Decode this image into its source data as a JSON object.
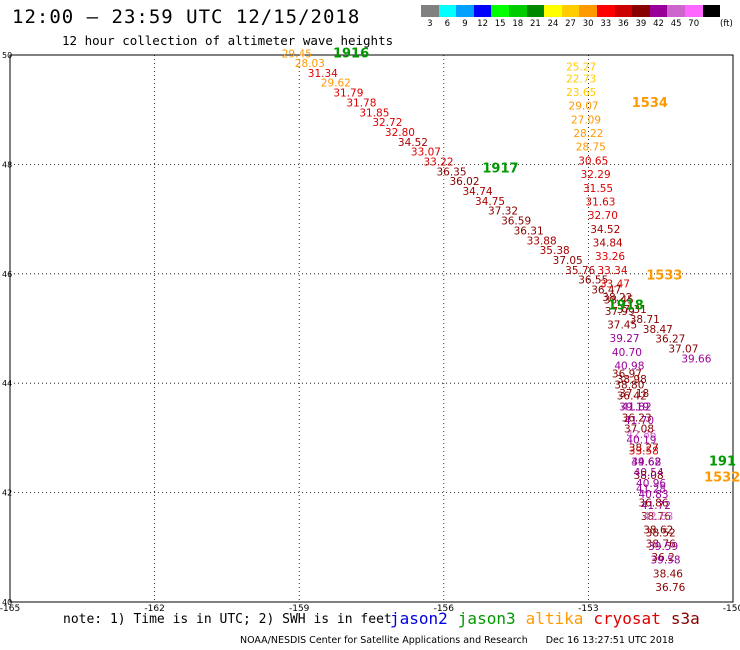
{
  "header": {
    "title": "12:00 – 23:59 UTC 12/15/2018",
    "subtitle": "12 hour collection of altimeter wave heights"
  },
  "color_scale": {
    "unit": "(ft)",
    "bins": [
      {
        "label": "3",
        "color": "#808080"
      },
      {
        "label": "6",
        "color": "#00ffff"
      },
      {
        "label": "9",
        "color": "#00a0ff"
      },
      {
        "label": "12",
        "color": "#0000ff"
      },
      {
        "label": "15",
        "color": "#00ff00"
      },
      {
        "label": "18",
        "color": "#00cc00"
      },
      {
        "label": "21",
        "color": "#008800"
      },
      {
        "label": "24",
        "color": "#ffff00"
      },
      {
        "label": "27",
        "color": "#ffcc00"
      },
      {
        "label": "30",
        "color": "#ff9900"
      },
      {
        "label": "33",
        "color": "#ff0000"
      },
      {
        "label": "36",
        "color": "#cc0000"
      },
      {
        "label": "39",
        "color": "#880000"
      },
      {
        "label": "42",
        "color": "#990099"
      },
      {
        "label": "45",
        "color": "#cc66cc"
      },
      {
        "label": "70",
        "color": "#ff66ff"
      },
      {
        "label": "",
        "color": "#000000"
      }
    ]
  },
  "notes": {
    "text": "note: 1) Time is in UTC; 2) SWH is in feet",
    "footer_org": "NOAA/NESDIS Center for Satellite Applications and Research",
    "footer_time": "Dec 16 13:27:51 UTC 2018"
  },
  "legend": [
    {
      "name": "jason2",
      "color": "#0000dd"
    },
    {
      "name": "jason3",
      "color": "#009900"
    },
    {
      "name": "altika",
      "color": "#ff9900"
    },
    {
      "name": "cryosat",
      "color": "#dd0000"
    },
    {
      "name": "s3a",
      "color": "#880000"
    }
  ],
  "chart_data": {
    "type": "scatter",
    "xlim": [
      -165,
      -150
    ],
    "ylim": [
      40,
      50
    ],
    "x_ticks": [
      {
        "value": -165,
        "label": "-165"
      },
      {
        "value": -162,
        "label": "-162"
      },
      {
        "value": -159,
        "label": "-159"
      },
      {
        "value": -156,
        "label": "-156"
      },
      {
        "value": -153,
        "label": "-153"
      },
      {
        "value": -150,
        "label": "-150"
      }
    ],
    "y_ticks": [
      {
        "value": 40,
        "label": "40"
      },
      {
        "value": 42,
        "label": "42"
      },
      {
        "value": 44,
        "label": "44"
      },
      {
        "value": 46,
        "label": "46"
      },
      {
        "value": 48,
        "label": "48"
      },
      {
        "value": 50,
        "label": "50"
      }
    ],
    "grid": true,
    "time_labels": [
      {
        "text": "1916",
        "x": -158.3,
        "y": 49.95,
        "color": "#009900"
      },
      {
        "text": "1917",
        "x": -155.2,
        "y": 47.85,
        "color": "#009900"
      },
      {
        "text": "1918",
        "x": -152.6,
        "y": 45.35,
        "color": "#009900"
      },
      {
        "text": "191",
        "x": -150.5,
        "y": 42.5,
        "color": "#009900"
      },
      {
        "text": "1534",
        "x": -152.1,
        "y": 49.05,
        "color": "#ff9900"
      },
      {
        "text": "1533",
        "x": -151.8,
        "y": 45.9,
        "color": "#ff9900"
      },
      {
        "text": "1532",
        "x": -150.6,
        "y": 42.2,
        "color": "#ff9900"
      }
    ],
    "series": [
      {
        "name": "jason3",
        "points": [
          {
            "x": -159.05,
            "y": 49.95,
            "v": "29.45",
            "color": "#ff9900"
          },
          {
            "x": -158.78,
            "y": 49.78,
            "v": "28.03",
            "color": "#ff9900"
          },
          {
            "x": -158.51,
            "y": 49.6,
            "v": "31.34",
            "color": "#dd0000"
          },
          {
            "x": -158.24,
            "y": 49.42,
            "v": "29.62",
            "color": "#ff9900"
          },
          {
            "x": -157.98,
            "y": 49.24,
            "v": "31.79",
            "color": "#dd0000"
          },
          {
            "x": -157.71,
            "y": 49.06,
            "v": "31.78",
            "color": "#dd0000"
          },
          {
            "x": -157.44,
            "y": 48.88,
            "v": "31.85",
            "color": "#dd0000"
          },
          {
            "x": -157.17,
            "y": 48.7,
            "v": "32.72",
            "color": "#dd0000"
          },
          {
            "x": -156.91,
            "y": 48.52,
            "v": "32.80",
            "color": "#dd0000"
          },
          {
            "x": -156.64,
            "y": 48.34,
            "v": "34.52",
            "color": "#aa0000"
          },
          {
            "x": -156.37,
            "y": 48.16,
            "v": "33.07",
            "color": "#dd0000"
          },
          {
            "x": -156.11,
            "y": 47.98,
            "v": "33.22",
            "color": "#dd0000"
          },
          {
            "x": -155.84,
            "y": 47.8,
            "v": "36.35",
            "color": "#880000"
          },
          {
            "x": -155.57,
            "y": 47.62,
            "v": "36.02",
            "color": "#880000"
          },
          {
            "x": -155.3,
            "y": 47.44,
            "v": "34.74",
            "color": "#aa0000"
          },
          {
            "x": -155.04,
            "y": 47.26,
            "v": "34.75",
            "color": "#aa0000"
          },
          {
            "x": -154.77,
            "y": 47.08,
            "v": "37.32",
            "color": "#880000"
          },
          {
            "x": -154.5,
            "y": 46.9,
            "v": "36.59",
            "color": "#880000"
          },
          {
            "x": -154.24,
            "y": 46.72,
            "v": "36.31",
            "color": "#880000"
          },
          {
            "x": -153.97,
            "y": 46.54,
            "v": "33.88",
            "color": "#aa0000"
          },
          {
            "x": -153.7,
            "y": 46.36,
            "v": "35.38",
            "color": "#aa0000"
          },
          {
            "x": -153.43,
            "y": 46.18,
            "v": "37.05",
            "color": "#880000"
          },
          {
            "x": -153.17,
            "y": 46.0,
            "v": "35.76",
            "color": "#aa0000"
          },
          {
            "x": -152.9,
            "y": 45.82,
            "v": "36.55",
            "color": "#880000"
          },
          {
            "x": -152.63,
            "y": 45.64,
            "v": "36.47",
            "color": "#880000"
          },
          {
            "x": -152.37,
            "y": 45.46,
            "v": "38.45",
            "color": "#880000"
          },
          {
            "x": -152.1,
            "y": 45.28,
            "v": "37.31",
            "color": "#880000"
          },
          {
            "x": -151.83,
            "y": 45.1,
            "v": "38.71",
            "color": "#880000"
          },
          {
            "x": -151.56,
            "y": 44.92,
            "v": "38.47",
            "color": "#880000"
          },
          {
            "x": -151.3,
            "y": 44.74,
            "v": "36.27",
            "color": "#880000"
          },
          {
            "x": -151.03,
            "y": 44.56,
            "v": "37.07",
            "color": "#880000"
          },
          {
            "x": -150.76,
            "y": 44.38,
            "v": "39.66",
            "color": "#990099"
          }
        ]
      },
      {
        "name": "altika",
        "points": [
          {
            "x": -153.15,
            "y": 49.72,
            "v": "25.27",
            "color": "#ffcc00"
          },
          {
            "x": -153.15,
            "y": 49.5,
            "v": "22.73",
            "color": "#ffcc00"
          },
          {
            "x": -153.15,
            "y": 49.25,
            "v": "23.65",
            "color": "#ffcc00"
          },
          {
            "x": -153.1,
            "y": 49.0,
            "v": "29.07",
            "color": "#ff9900"
          },
          {
            "x": -153.05,
            "y": 48.75,
            "v": "27.09",
            "color": "#ff9900"
          },
          {
            "x": -153.0,
            "y": 48.5,
            "v": "28.22",
            "color": "#ff9900"
          },
          {
            "x": -152.95,
            "y": 48.25,
            "v": "28.75",
            "color": "#ff9900"
          },
          {
            "x": -152.9,
            "y": 48.0,
            "v": "30.65",
            "color": "#dd0000"
          },
          {
            "x": -152.85,
            "y": 47.75,
            "v": "32.29",
            "color": "#dd0000"
          },
          {
            "x": -152.8,
            "y": 47.5,
            "v": "31.55",
            "color": "#dd0000"
          },
          {
            "x": -152.75,
            "y": 47.25,
            "v": "31.63",
            "color": "#dd0000"
          },
          {
            "x": -152.7,
            "y": 47.0,
            "v": "32.70",
            "color": "#dd0000"
          },
          {
            "x": -152.65,
            "y": 46.75,
            "v": "34.52",
            "color": "#aa0000"
          },
          {
            "x": -152.6,
            "y": 46.5,
            "v": "34.84",
            "color": "#aa0000"
          },
          {
            "x": -152.55,
            "y": 46.25,
            "v": "33.26",
            "color": "#dd0000"
          },
          {
            "x": -152.5,
            "y": 46.0,
            "v": "33.34",
            "color": "#dd0000"
          },
          {
            "x": -152.45,
            "y": 45.75,
            "v": "33.47",
            "color": "#dd0000"
          },
          {
            "x": -152.4,
            "y": 45.5,
            "v": "38.22",
            "color": "#880000"
          },
          {
            "x": -152.35,
            "y": 45.25,
            "v": "37.99",
            "color": "#880000"
          },
          {
            "x": -152.3,
            "y": 45.0,
            "v": "37.45",
            "color": "#880000"
          },
          {
            "x": -152.25,
            "y": 44.75,
            "v": "39.27",
            "color": "#990099"
          },
          {
            "x": -152.2,
            "y": 44.5,
            "v": "40.70",
            "color": "#990099"
          },
          {
            "x": -152.15,
            "y": 44.25,
            "v": "40.98",
            "color": "#990099"
          },
          {
            "x": -152.1,
            "y": 44.0,
            "v": "38.98",
            "color": "#880000"
          },
          {
            "x": -152.05,
            "y": 43.75,
            "v": "37.18",
            "color": "#880000"
          },
          {
            "x": -152.0,
            "y": 43.5,
            "v": "41.82",
            "color": "#990099"
          },
          {
            "x": -151.95,
            "y": 43.25,
            "v": "41.70",
            "color": "#990099"
          },
          {
            "x": -151.9,
            "y": 43.0,
            "v": "42.86",
            "color": "#cc66cc"
          },
          {
            "x": -151.85,
            "y": 42.75,
            "v": "38.27",
            "color": "#880000"
          },
          {
            "x": -151.8,
            "y": 42.5,
            "v": "39.62",
            "color": "#990099"
          },
          {
            "x": -151.75,
            "y": 42.25,
            "v": "38.08",
            "color": "#880000"
          },
          {
            "x": -151.7,
            "y": 42.0,
            "v": "41.28",
            "color": "#990099"
          },
          {
            "x": -151.65,
            "y": 41.75,
            "v": "36.86",
            "color": "#880000"
          },
          {
            "x": -151.6,
            "y": 41.5,
            "v": "38.76",
            "color": "#880000"
          },
          {
            "x": -151.55,
            "y": 41.25,
            "v": "38.62",
            "color": "#880000"
          },
          {
            "x": -151.5,
            "y": 41.0,
            "v": "38.76",
            "color": "#880000"
          },
          {
            "x": -151.45,
            "y": 40.75,
            "v": "36.2",
            "color": "#880000"
          }
        ]
      },
      {
        "name": "s3a",
        "points": [
          {
            "x": -152.2,
            "y": 44.1,
            "v": "36.97",
            "color": "#880000"
          },
          {
            "x": -152.15,
            "y": 43.9,
            "v": "38.80",
            "color": "#880000"
          },
          {
            "x": -152.1,
            "y": 43.7,
            "v": "36.42",
            "color": "#880000"
          },
          {
            "x": -152.05,
            "y": 43.5,
            "v": "39.19",
            "color": "#990099"
          },
          {
            "x": -152.0,
            "y": 43.3,
            "v": "36.23",
            "color": "#880000"
          },
          {
            "x": -151.95,
            "y": 43.1,
            "v": "37.08",
            "color": "#880000"
          },
          {
            "x": -151.9,
            "y": 42.9,
            "v": "40.19",
            "color": "#990099"
          },
          {
            "x": -151.85,
            "y": 42.7,
            "v": "33.58",
            "color": "#dd0000"
          },
          {
            "x": -151.8,
            "y": 42.5,
            "v": "44.68",
            "color": "#990099"
          },
          {
            "x": -151.75,
            "y": 42.3,
            "v": "40.54",
            "color": "#990099"
          },
          {
            "x": -151.7,
            "y": 42.1,
            "v": "40.96",
            "color": "#990099"
          },
          {
            "x": -151.65,
            "y": 41.9,
            "v": "40.83",
            "color": "#990099"
          },
          {
            "x": -151.6,
            "y": 41.7,
            "v": "41.72",
            "color": "#990099"
          },
          {
            "x": -151.55,
            "y": 41.5,
            "v": "42.63",
            "color": "#cc66cc"
          },
          {
            "x": -151.5,
            "y": 41.2,
            "v": "38.52",
            "color": "#880000"
          },
          {
            "x": -151.45,
            "y": 40.95,
            "v": "39.59",
            "color": "#990099"
          },
          {
            "x": -151.4,
            "y": 40.7,
            "v": "39.58",
            "color": "#990099"
          },
          {
            "x": -151.35,
            "y": 40.45,
            "v": "38.46",
            "color": "#880000"
          },
          {
            "x": -151.3,
            "y": 40.2,
            "v": "36.76",
            "color": "#880000"
          }
        ]
      }
    ]
  }
}
